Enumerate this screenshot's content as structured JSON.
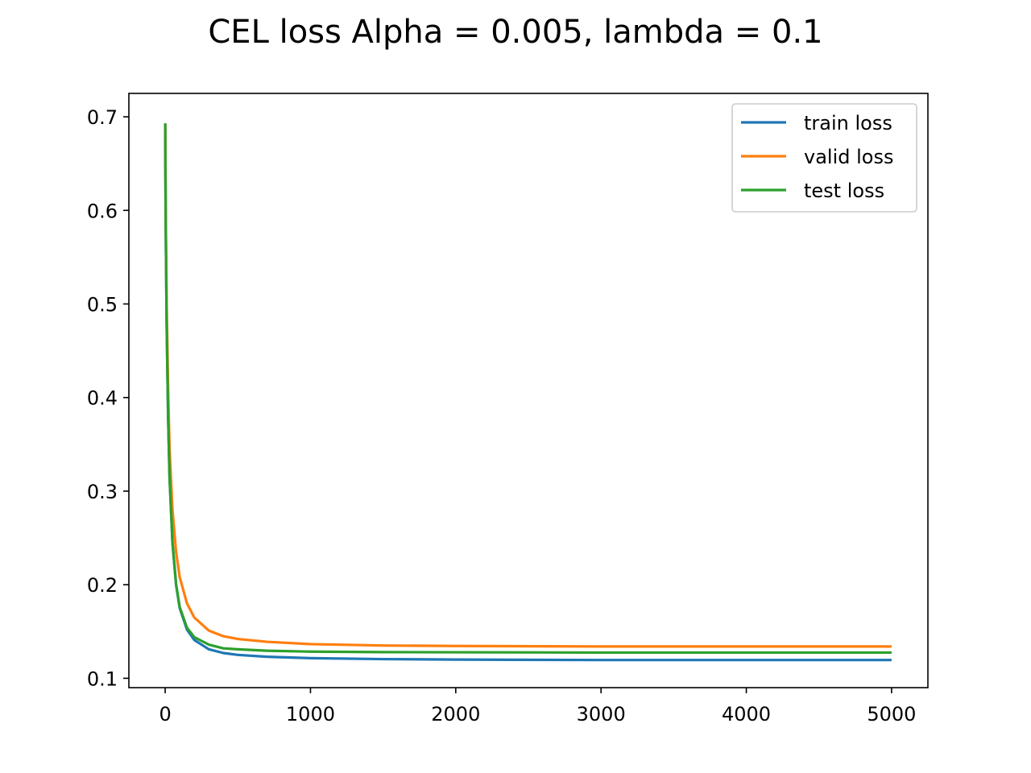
{
  "chart_data": {
    "type": "line",
    "title": "CEL loss Alpha = 0.005, lambda = 0.1",
    "xlabel": "",
    "ylabel": "",
    "xlim": [
      -250,
      5250
    ],
    "ylim": [
      0.09,
      0.725
    ],
    "xticks": [
      0,
      1000,
      2000,
      3000,
      4000,
      5000
    ],
    "yticks": [
      0.1,
      0.2,
      0.3,
      0.4,
      0.5,
      0.6,
      0.7
    ],
    "grid": false,
    "legend_position": "top-right",
    "x": [
      0,
      2,
      5,
      10,
      20,
      30,
      50,
      75,
      100,
      150,
      200,
      300,
      400,
      500,
      700,
      1000,
      1500,
      2000,
      3000,
      4000,
      5000
    ],
    "series": [
      {
        "name": "train loss",
        "color": "#1f77b4",
        "values": [
          0.693,
          0.63,
          0.56,
          0.48,
          0.38,
          0.315,
          0.245,
          0.2,
          0.175,
          0.152,
          0.141,
          0.131,
          0.127,
          0.125,
          0.123,
          0.1215,
          0.1205,
          0.12,
          0.1195,
          0.1195,
          0.1195
        ]
      },
      {
        "name": "valid loss",
        "color": "#ff7f0e",
        "values": [
          0.693,
          0.64,
          0.575,
          0.5,
          0.41,
          0.345,
          0.28,
          0.235,
          0.208,
          0.18,
          0.165,
          0.151,
          0.145,
          0.142,
          0.139,
          0.1365,
          0.135,
          0.1345,
          0.134,
          0.134,
          0.134
        ]
      },
      {
        "name": "test loss",
        "color": "#2ca02c",
        "values": [
          0.693,
          0.63,
          0.56,
          0.48,
          0.38,
          0.315,
          0.245,
          0.2,
          0.176,
          0.154,
          0.144,
          0.136,
          0.132,
          0.131,
          0.1295,
          0.1285,
          0.128,
          0.1278,
          0.1275,
          0.1275,
          0.1275
        ]
      }
    ]
  }
}
